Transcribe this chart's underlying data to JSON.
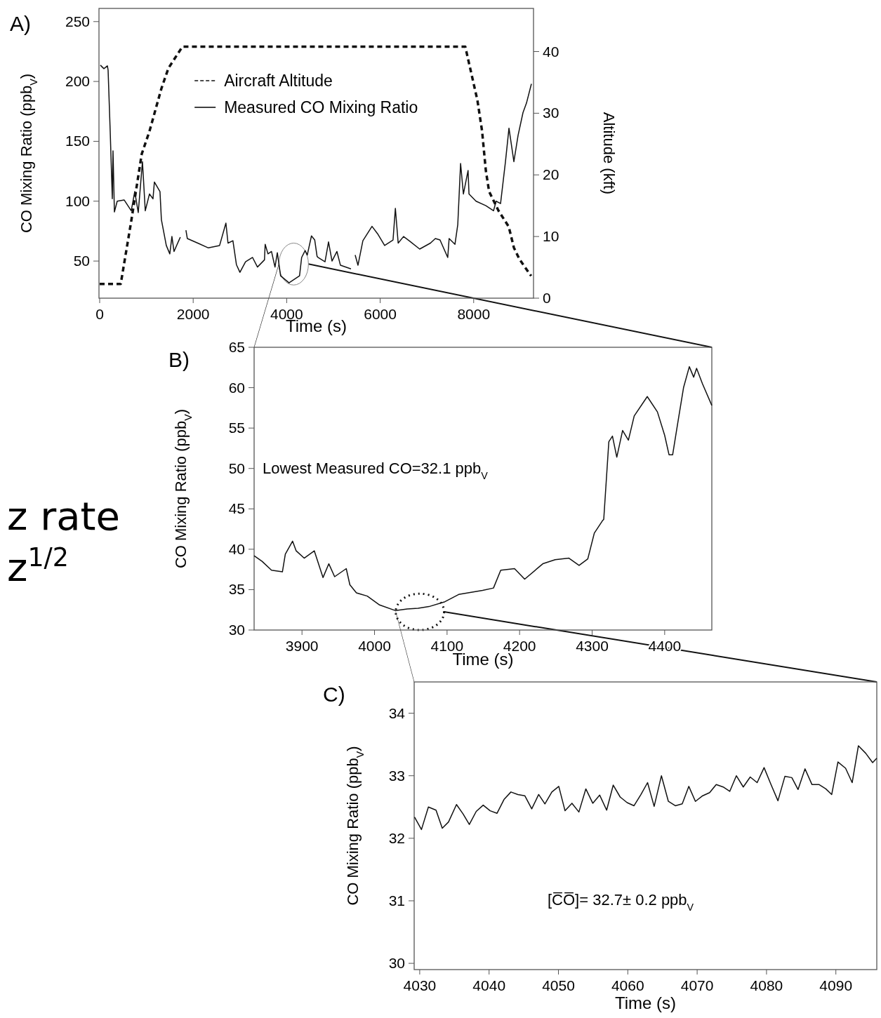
{
  "chart_data": [
    {
      "type": "line",
      "title": "A)",
      "xlabel": "Time (s)",
      "ylabel": "CO Mixing Ratio (ppb$_{V}$)",
      "y2label": "Altitude (kft)",
      "xlim": [
        -15,
        9280
      ],
      "ylim": [
        19,
        261
      ],
      "y2lim": [
        0,
        47
      ],
      "xticks": [
        0,
        2000,
        4000,
        6000,
        8000
      ],
      "yticks": [
        50,
        100,
        150,
        200,
        250
      ],
      "y2ticks": [
        0,
        10,
        20,
        30,
        40
      ],
      "legend": "top",
      "series": [
        {
          "name": "Aircraft Altitude",
          "color": "#111111",
          "axis": "y2",
          "line_style": "dashed",
          "x": [
            0,
            450,
            675,
            900,
            1066,
            1320,
            1470,
            1770,
            7820,
            8080,
            8180,
            8260,
            8330,
            8530,
            8750,
            8860,
            8980,
            9230
          ],
          "values": [
            2.3,
            2.3,
            12.5,
            23.4,
            27.1,
            34,
            37.3,
            40.8,
            40.8,
            32.1,
            27.1,
            20.7,
            17.3,
            14.2,
            11.6,
            8.2,
            6.3,
            3.6
          ]
        },
        {
          "name": "Measured CO Mixing Ratio",
          "color": "#111111",
          "line_style": "solid",
          "x": [
            15,
            90,
            165,
            180,
            225,
            270,
            285,
            315,
            375,
            525,
            675,
            750,
            825,
            915,
            975,
            1065,
            1140,
            1170,
            1290,
            1320,
            1425,
            1500,
            1545,
            1590,
            1725,
            1790,
            1845,
            1875,
            2115,
            2325,
            2565,
            2700,
            2745,
            2850,
            2925,
            3000,
            3120,
            3270,
            3375,
            3525,
            3540,
            3600,
            3675,
            3750,
            3800,
            3870,
            4050,
            4275,
            4320,
            4395,
            4440,
            4530,
            4600,
            4650,
            4670,
            4820,
            4895,
            4970,
            5075,
            5150,
            5375,
            5420,
            5465,
            5525,
            5630,
            5825,
            5945,
            6095,
            6275,
            6325,
            6385,
            6500,
            6620,
            6845,
            7075,
            7180,
            7280,
            7445,
            7475,
            7600,
            7660,
            7720,
            7780,
            7880,
            7900,
            8050,
            8260,
            8425,
            8480,
            8575,
            8680,
            8755,
            8860,
            8950,
            9055,
            9130,
            9235
          ],
          "values": [
            213.6,
            210.7,
            213,
            209.5,
            158.5,
            102,
            142,
            91,
            100,
            101,
            92,
            108,
            90.5,
            133,
            92,
            106,
            102,
            116,
            108,
            84.6,
            63,
            56,
            70.5,
            58,
            70,
            null,
            75.8,
            68.8,
            64.7,
            61,
            63,
            81.7,
            65,
            67,
            47,
            40.6,
            49.4,
            53,
            45,
            51,
            64,
            56,
            58,
            45,
            57,
            37.7,
            31.8,
            37.7,
            53,
            58.8,
            55,
            71,
            67.6,
            54,
            53,
            49.4,
            66,
            50,
            58,
            46.5,
            43.5,
            null,
            55,
            46.5,
            67,
            79,
            72.8,
            63,
            67.6,
            94,
            65,
            70.5,
            67,
            60,
            65,
            68.8,
            67.6,
            53,
            68.8,
            64,
            80.5,
            131.5,
            106,
            125.6,
            106,
            100,
            96.3,
            92,
            100,
            98,
            133,
            161,
            133,
            155,
            174,
            182,
            198
          ]
        }
      ]
    },
    {
      "type": "line",
      "title": "B)",
      "xlabel": "Time (s)",
      "ylabel": "CO Mixing Ratio (ppb$_{V}$)",
      "xlim": [
        3834,
        4465
      ],
      "ylim": [
        30,
        65
      ],
      "xticks": [
        3900,
        4000,
        4100,
        4200,
        4300,
        4400
      ],
      "yticks": [
        30,
        35,
        40,
        45,
        50,
        55,
        60,
        65
      ],
      "annotations": [
        "Lowest Measured CO=32.1 ppb$_{V}$",
        "z rate",
        "z$^{1/2}$"
      ],
      "series": [
        {
          "color": "#111111",
          "x": [
            3834,
            3845,
            3858,
            3873,
            3877,
            3887,
            3892,
            3903,
            3917,
            3929,
            3937,
            3945,
            3961,
            3966,
            3975,
            3990,
            4007,
            4029,
            4045,
            4060,
            4075,
            4097,
            4116,
            4149,
            4164,
            4174,
            4193,
            4207,
            4232,
            4249,
            4268,
            4282,
            4294,
            4303,
            4314,
            4316,
            4323,
            4328,
            4334,
            4342,
            4350,
            4358,
            4376,
            4390,
            4400,
            4406,
            4411,
            4418,
            4426,
            4434,
            4440,
            4444,
            4452,
            4465
          ],
          "values": [
            39.2,
            38.5,
            37.4,
            37.2,
            39.4,
            41,
            39.8,
            38.9,
            39.8,
            36.5,
            38.2,
            36.6,
            37.6,
            35.6,
            34.6,
            34.2,
            33.1,
            32.4,
            32.6,
            32.7,
            32.9,
            33.5,
            34.4,
            34.9,
            35.2,
            37.4,
            37.6,
            36.3,
            38.2,
            38.7,
            38.9,
            38,
            38.8,
            42,
            43.5,
            43.7,
            53.3,
            54,
            51.4,
            54.7,
            53.5,
            56.5,
            58.9,
            57,
            54.1,
            51.7,
            51.7,
            55.6,
            60,
            62.6,
            61.3,
            62.4,
            60.5,
            57.8
          ]
        }
      ]
    },
    {
      "type": "line",
      "title": "C)",
      "xlabel": "Time (s)",
      "ylabel": "CO Mixing Ratio (ppb$_{V}$)",
      "xlim": [
        4029.2,
        4095.9
      ],
      "ylim": [
        29.9,
        34.5
      ],
      "xticks": [
        4030,
        4040,
        4050,
        4060,
        4070,
        4080,
        4090
      ],
      "yticks": [
        30,
        31,
        32,
        33,
        34
      ],
      "annotations": [
        "[C̅O̅]= 32.7± 0.2 ppb$_{V}$"
      ],
      "series": [
        {
          "color": "#111111",
          "x": [
            4029.25,
            4030.25,
            4031.25,
            4032.35,
            4033.25,
            4034.15,
            4035.3,
            4036.25,
            4037.15,
            4038.15,
            4039.15,
            4040.15,
            4041.15,
            4042.15,
            4043.15,
            4044.15,
            4045.15,
            4046.15,
            4047.15,
            4048.05,
            4049.05,
            4050.05,
            4050.95,
            4051.95,
            4052.95,
            4053.95,
            4054.95,
            4055.95,
            4056.95,
            4057.9,
            4058.9,
            4059.9,
            4060.9,
            4061.9,
            4062.85,
            4063.8,
            4064.85,
            4065.85,
            4066.85,
            4067.85,
            4068.8,
            4069.75,
            4070.8,
            4071.8,
            4072.75,
            4073.75,
            4074.7,
            4075.65,
            4076.65,
            4077.65,
            4078.65,
            4079.65,
            4080.65,
            4081.65,
            4082.65,
            4083.65,
            4084.55,
            4085.55,
            4086.55,
            4087.55,
            4088.55,
            4089.4,
            4090.3,
            4091.4,
            4092.35,
            4093.25,
            4094.3,
            4095.3,
            4095.9
          ],
          "values": [
            32.34,
            32.14,
            32.5,
            32.45,
            32.16,
            32.26,
            32.54,
            32.39,
            32.22,
            32.43,
            32.53,
            32.44,
            32.4,
            32.62,
            32.74,
            32.7,
            32.68,
            32.47,
            32.7,
            32.55,
            32.74,
            32.83,
            32.44,
            32.56,
            32.42,
            32.79,
            32.56,
            32.69,
            32.45,
            32.85,
            32.66,
            32.57,
            32.52,
            32.7,
            32.89,
            32.51,
            33.0,
            32.59,
            32.52,
            32.55,
            32.83,
            32.59,
            32.68,
            32.73,
            32.86,
            32.82,
            32.75,
            33.0,
            32.82,
            32.98,
            32.89,
            33.13,
            32.86,
            32.6,
            32.99,
            32.97,
            32.78,
            33.11,
            32.86,
            32.86,
            32.79,
            32.7,
            33.22,
            33.12,
            32.89,
            33.48,
            33.36,
            33.21,
            33.28
          ]
        }
      ]
    }
  ]
}
